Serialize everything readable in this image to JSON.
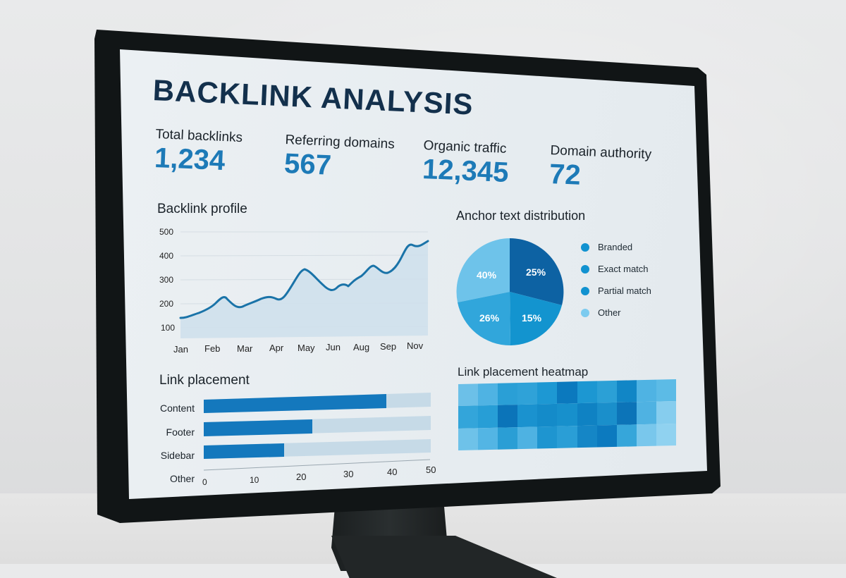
{
  "dashboard": {
    "title": "BACKLINK ANALYSIS",
    "kpis": [
      {
        "label": "Total backlinks",
        "value": "1,234"
      },
      {
        "label": "Referring domains",
        "value": "567"
      },
      {
        "label": "Organic traffic",
        "value": "12,345"
      },
      {
        "label": "Domain authority",
        "value": "72"
      }
    ],
    "colors": {
      "title": "#13304c",
      "accent": "#1d7ab7",
      "line": "#1a73a8",
      "area": "#cfe0ec",
      "bar_fill": "#1478bd",
      "bar_track": "#c6dae7"
    },
    "backlink_profile": {
      "title": "Backlink profile",
      "y_ticks": [
        "500",
        "400",
        "300",
        "200",
        "100"
      ],
      "x_ticks": [
        "Jan",
        "Feb",
        "Mar",
        "Apr",
        "May",
        "Jun",
        "Aug",
        "Sep",
        "Nov"
      ]
    },
    "anchor_text": {
      "title": "Anchor text distribution",
      "slices": [
        {
          "label": "40%",
          "color": "#6ec3ea"
        },
        {
          "label": "25%",
          "color": "#0d62a3"
        },
        {
          "label": "15%",
          "color": "#1394cf"
        },
        {
          "label": "26%",
          "color": "#31a6db"
        }
      ],
      "legend": [
        {
          "label": "Branded",
          "color": "#1192d0"
        },
        {
          "label": "Exact match",
          "color": "#1192d0"
        },
        {
          "label": "Partial match",
          "color": "#1192d0"
        },
        {
          "label": "Other",
          "color": "#7ccbef"
        }
      ]
    },
    "link_placement": {
      "title": "Link placement",
      "categories": [
        "Content",
        "Footer",
        "Sidebar",
        "Other"
      ],
      "x_ticks": [
        "0",
        "10",
        "20",
        "30",
        "40",
        "50"
      ]
    },
    "heatmap": {
      "title": "Link placement heatmap",
      "rows": [
        [
          "#6cc0e8",
          "#4fb3e3",
          "#2a9fd6",
          "#2fa2d8",
          "#1d98d3",
          "#0b79be",
          "#1c97d2",
          "#2ba0d6",
          "#1186c6",
          "#4fb3e3",
          "#5cbbe6"
        ],
        [
          "#33a5da",
          "#279ed6",
          "#0b74b9",
          "#1a92cf",
          "#148bc9",
          "#1790cc",
          "#0f82c3",
          "#1a8fcb",
          "#0c74b8",
          "#4fb2e2",
          "#86cdee"
        ],
        [
          "#6ec2e9",
          "#53b5e4",
          "#2a9ed5",
          "#4eb2e2",
          "#1e95d0",
          "#2a9ed6",
          "#1586c6",
          "#0c7abf",
          "#36a6da",
          "#79c7ec",
          "#90d2f0"
        ]
      ]
    }
  },
  "chart_data": [
    {
      "type": "area",
      "title": "Backlink profile",
      "xlabel": "",
      "ylabel": "",
      "x": [
        "Jan",
        "",
        "Feb",
        "",
        "Mar",
        "",
        "Apr",
        "",
        "May",
        "",
        "Jun",
        "",
        "",
        "Aug",
        "",
        "Sep",
        "",
        "",
        "Nov",
        "",
        ""
      ],
      "values": [
        140,
        155,
        175,
        222,
        185,
        205,
        222,
        212,
        250,
        340,
        300,
        260,
        285,
        272,
        315,
        360,
        325,
        350,
        440,
        432,
        465
      ],
      "x_ticks": [
        "Jan",
        "Feb",
        "Mar",
        "Apr",
        "May",
        "Jun",
        "Aug",
        "Sep",
        "Nov"
      ],
      "y_ticks": [
        100,
        200,
        300,
        400,
        500
      ],
      "ylim": [
        50,
        500
      ],
      "grid": true
    },
    {
      "type": "pie",
      "title": "Anchor text distribution",
      "categories": [
        "Branded",
        "Exact match",
        "Partial match",
        "Other"
      ],
      "slice_labels": [
        "25%",
        "15%",
        "26%",
        "40%"
      ],
      "values": [
        25,
        15,
        26,
        40
      ],
      "legend_position": "right"
    },
    {
      "type": "bar",
      "orientation": "horizontal",
      "title": "Link placement",
      "categories": [
        "Content",
        "Footer",
        "Sidebar",
        "Other"
      ],
      "values": [
        40,
        24,
        18,
        0
      ],
      "xlim": [
        0,
        50
      ],
      "x_ticks": [
        0,
        10,
        20,
        30,
        40,
        50
      ]
    },
    {
      "type": "heatmap",
      "title": "Link placement heatmap",
      "rows": 3,
      "cols": 11,
      "intensity": [
        [
          0.35,
          0.5,
          0.65,
          0.62,
          0.72,
          0.95,
          0.73,
          0.65,
          0.85,
          0.5,
          0.42
        ],
        [
          0.62,
          0.68,
          0.95,
          0.78,
          0.82,
          0.8,
          0.88,
          0.8,
          0.95,
          0.5,
          0.25
        ],
        [
          0.35,
          0.48,
          0.68,
          0.5,
          0.75,
          0.68,
          0.85,
          0.92,
          0.6,
          0.3,
          0.2
        ]
      ]
    }
  ]
}
